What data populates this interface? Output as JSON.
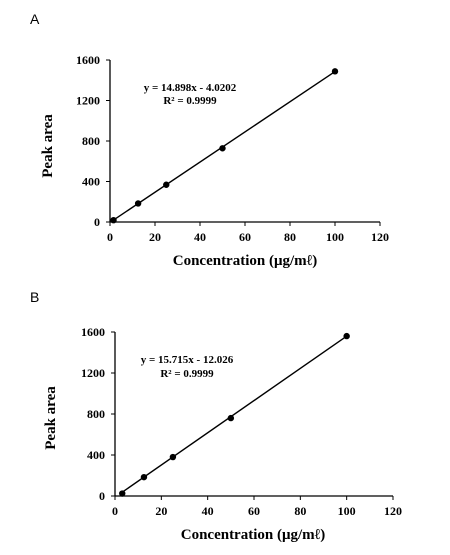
{
  "chart_data": [
    {
      "type": "scatter",
      "panel": "A",
      "title": "",
      "xlabel": "Concentration (μg/mℓ)",
      "ylabel": "Peak area",
      "xlim": [
        0,
        120
      ],
      "ylim": [
        0,
        1600
      ],
      "xticks": [
        "0",
        "20",
        "40",
        "60",
        "80",
        "100",
        "120"
      ],
      "yticks": [
        "0",
        "400",
        "800",
        "1200",
        "1600"
      ],
      "equation": "y = 14.898x - 4.0202",
      "r2": "R² = 0.9999",
      "trendline": {
        "slope": 14.898,
        "intercept": -4.0202
      },
      "series": [
        {
          "x": [
            1.5625,
            12.5,
            25,
            50,
            100
          ],
          "y": [
            18,
            183,
            368,
            728,
            1488
          ]
        }
      ],
      "grid": false,
      "legend": "none"
    },
    {
      "type": "scatter",
      "panel": "B",
      "title": "",
      "xlabel": "Concentration (μg/mℓ)",
      "ylabel": "Peak area",
      "xlim": [
        0,
        120
      ],
      "ylim": [
        0,
        1600
      ],
      "xticks": [
        "0",
        "20",
        "40",
        "60",
        "80",
        "100",
        "120"
      ],
      "yticks": [
        "0",
        "400",
        "800",
        "1200",
        "1600"
      ],
      "equation": "y = 15.715x - 12.026",
      "r2": "R² = 0.9999",
      "trendline": {
        "slope": 15.715,
        "intercept": -12.026
      },
      "series": [
        {
          "x": [
            3.125,
            12.5,
            25,
            50,
            100
          ],
          "y": [
            24,
            184,
            380,
            760,
            1560
          ]
        }
      ],
      "grid": false,
      "legend": "none"
    }
  ]
}
